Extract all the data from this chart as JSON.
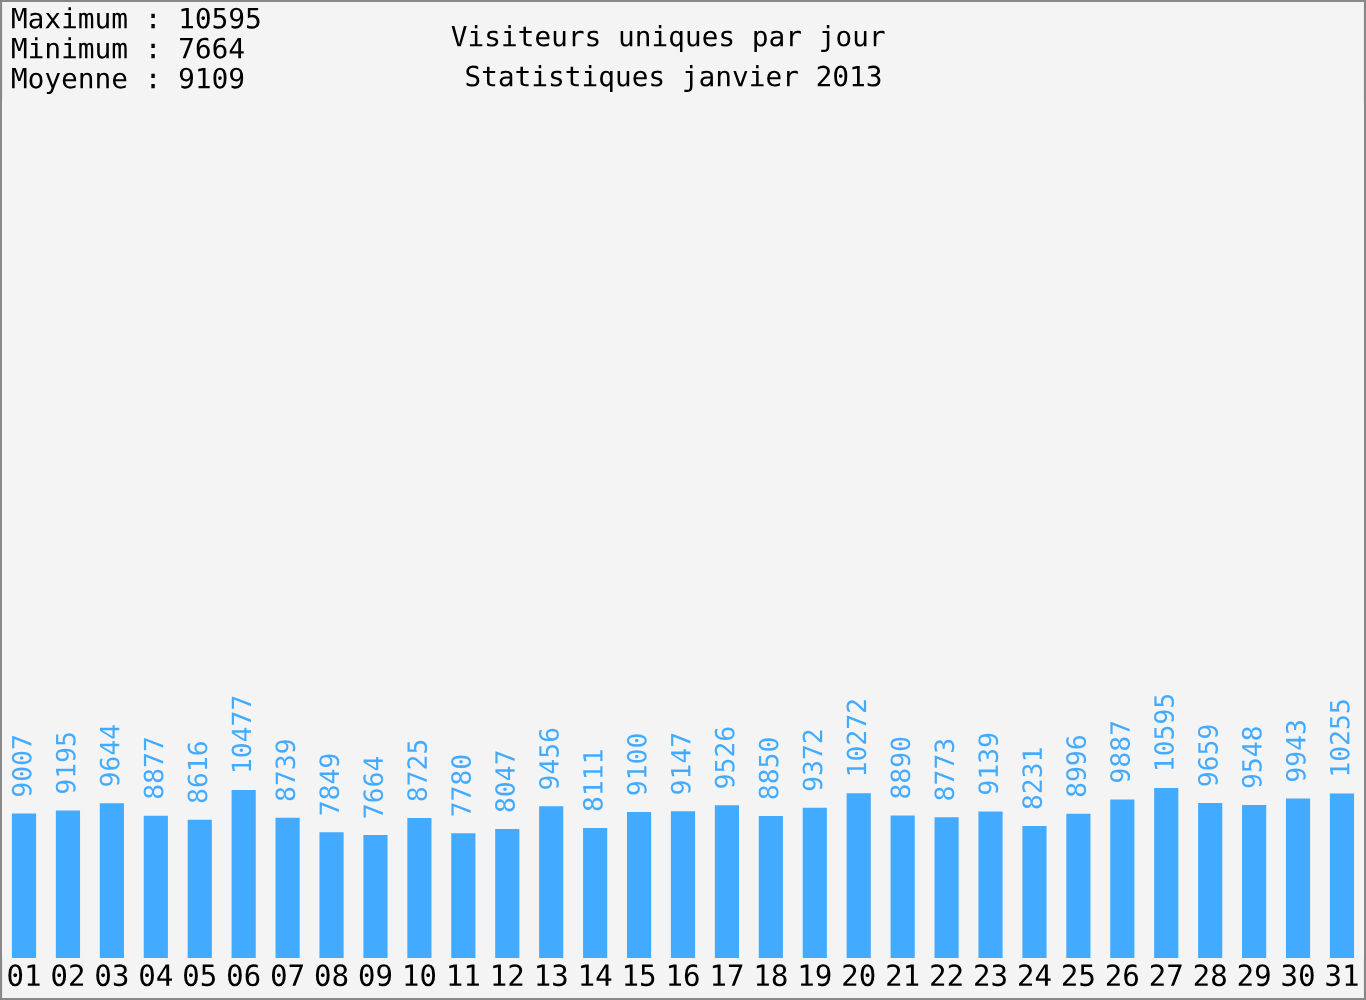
{
  "chart_data": {
    "type": "bar",
    "title": "Visiteurs uniques par jour",
    "subtitle": "Statistiques janvier 2013",
    "annotations": [
      "Maximum : 10595",
      "Minimum : 7664",
      "Moyenne : 9109"
    ],
    "categories": [
      "01",
      "02",
      "03",
      "04",
      "05",
      "06",
      "07",
      "08",
      "09",
      "10",
      "11",
      "12",
      "13",
      "14",
      "15",
      "16",
      "17",
      "18",
      "19",
      "20",
      "21",
      "22",
      "23",
      "24",
      "25",
      "26",
      "27",
      "28",
      "29",
      "30",
      "31"
    ],
    "values": [
      9007,
      9195,
      9644,
      8877,
      8616,
      10477,
      8739,
      7849,
      7664,
      8725,
      7780,
      8047,
      9456,
      8111,
      9100,
      9147,
      9526,
      8850,
      9372,
      10272,
      8890,
      8773,
      9139,
      8231,
      8996,
      9887,
      10595,
      9659,
      9548,
      9943,
      10255
    ],
    "color": "#42aaff",
    "data_labels": true
  }
}
